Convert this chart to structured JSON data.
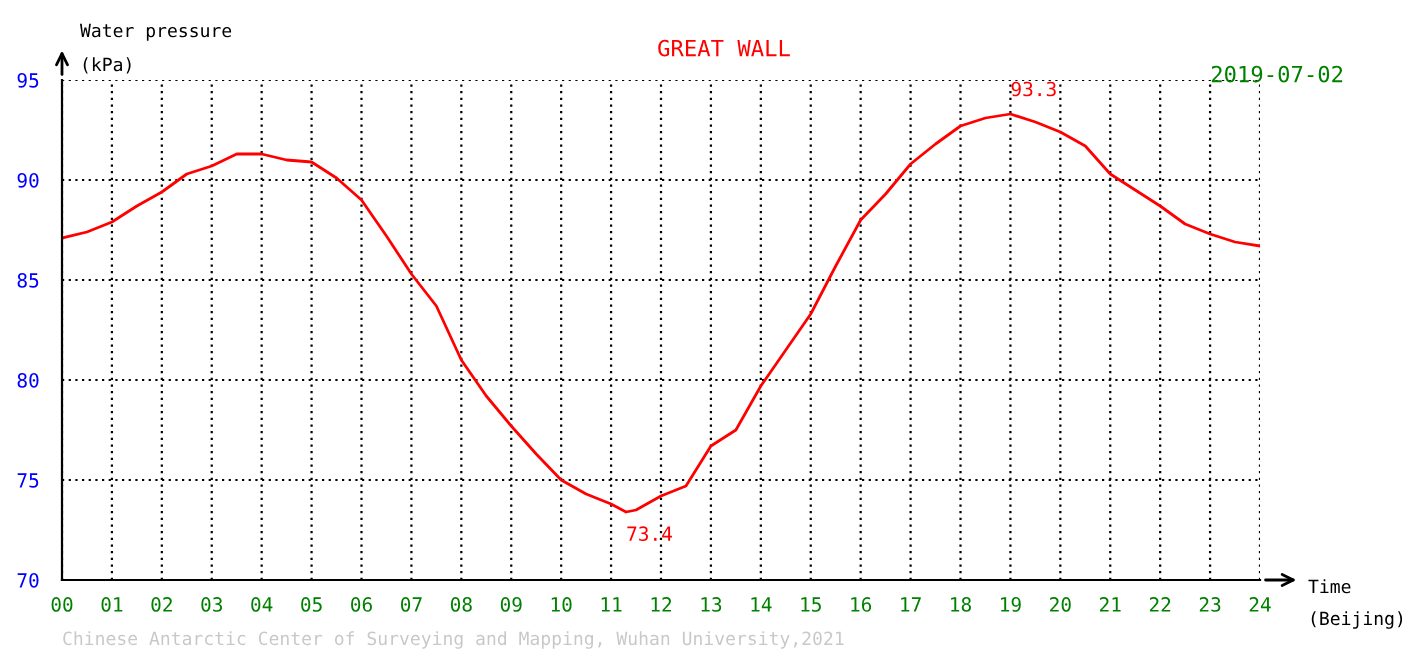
{
  "chart_data": {
    "type": "line",
    "title": "GREAT WALL",
    "subtitle": "2019-07-02",
    "xlabel": "Time\n(Beijing)",
    "ylabel": "Water pressure\n(kPa)",
    "x": [
      0,
      0.5,
      1,
      1.5,
      2,
      2.5,
      3,
      3.5,
      4,
      4.5,
      5,
      5.5,
      6,
      6.5,
      7,
      7.5,
      8,
      8.5,
      9,
      9.5,
      10,
      10.5,
      11,
      11.3,
      11.5,
      12,
      12.5,
      13,
      13.5,
      14,
      14.5,
      15,
      15.5,
      16,
      16.5,
      17,
      17.5,
      18,
      18.5,
      19,
      19.5,
      20,
      20.5,
      21,
      21.5,
      22,
      22.5,
      23,
      23.5,
      24
    ],
    "series": [
      {
        "color": "#ff0000",
        "values": [
          87.1,
          87.4,
          87.9,
          88.7,
          89.4,
          90.3,
          90.7,
          91.3,
          91.3,
          91.0,
          90.9,
          90.1,
          89.0,
          87.2,
          85.3,
          83.7,
          81.0,
          79.2,
          77.7,
          76.3,
          75.0,
          74.3,
          73.8,
          73.4,
          73.5,
          74.2,
          74.7,
          76.7,
          77.5,
          79.7,
          81.5,
          83.3,
          85.7,
          88.0,
          89.3,
          90.8,
          91.8,
          92.7,
          93.1,
          93.3,
          92.9,
          92.4,
          91.7,
          90.3,
          89.5,
          88.7,
          87.8,
          87.3,
          86.9,
          86.7
        ]
      }
    ],
    "xlim": [
      0,
      24
    ],
    "ylim": [
      70,
      95
    ],
    "xticks": [
      {
        "value": 0,
        "label": "00"
      },
      {
        "value": 1,
        "label": "01"
      },
      {
        "value": 2,
        "label": "02"
      },
      {
        "value": 3,
        "label": "03"
      },
      {
        "value": 4,
        "label": "04"
      },
      {
        "value": 5,
        "label": "05"
      },
      {
        "value": 6,
        "label": "06"
      },
      {
        "value": 7,
        "label": "07"
      },
      {
        "value": 8,
        "label": "08"
      },
      {
        "value": 9,
        "label": "09"
      },
      10,
      11,
      12,
      13,
      14,
      15,
      16,
      17,
      18,
      19,
      20,
      21,
      22,
      23,
      24
    ],
    "yticks": [
      70,
      75,
      80,
      85,
      90,
      95
    ],
    "grid": true,
    "legend": false,
    "marker": "none",
    "line_style": "solid",
    "annotations": [
      {
        "text": "93.3",
        "x": 19,
        "y": 93.3
      },
      {
        "text": "73.4",
        "x": 11.3,
        "y": 73.4
      },
      "Chinese Antarctic Center of Surveying and Mapping, Wuhan University,2021"
    ]
  }
}
